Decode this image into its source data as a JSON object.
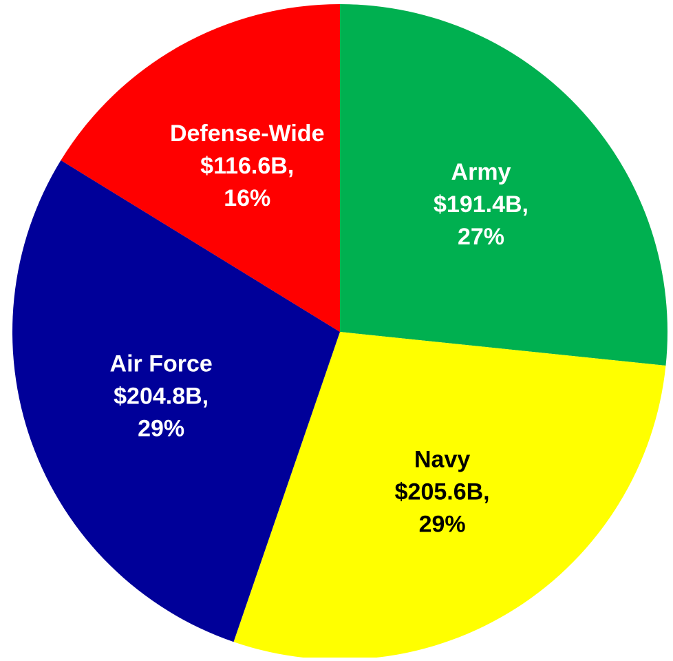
{
  "chart_data": {
    "type": "pie",
    "title": "",
    "start_angle_deg": 0,
    "direction": "clockwise",
    "slices": [
      {
        "category": "Army",
        "value": 191.4,
        "value_label": "$191.4B,",
        "percent_label": "27%",
        "color": "#00B050",
        "label_color": "#FFFFFF"
      },
      {
        "category": "Navy",
        "value": 205.6,
        "value_label": "$205.6B,",
        "percent_label": "29%",
        "color": "#FFFF00",
        "label_color": "#000000"
      },
      {
        "category": "Air Force",
        "value": 204.8,
        "value_label": "$204.8B,",
        "percent_label": "29%",
        "color": "#000099",
        "label_color": "#FFFFFF"
      },
      {
        "category": "Defense-Wide",
        "value": 116.6,
        "value_label": "$116.6B,",
        "percent_label": "16%",
        "color": "#FF0000",
        "label_color": "#FFFFFF"
      }
    ]
  }
}
